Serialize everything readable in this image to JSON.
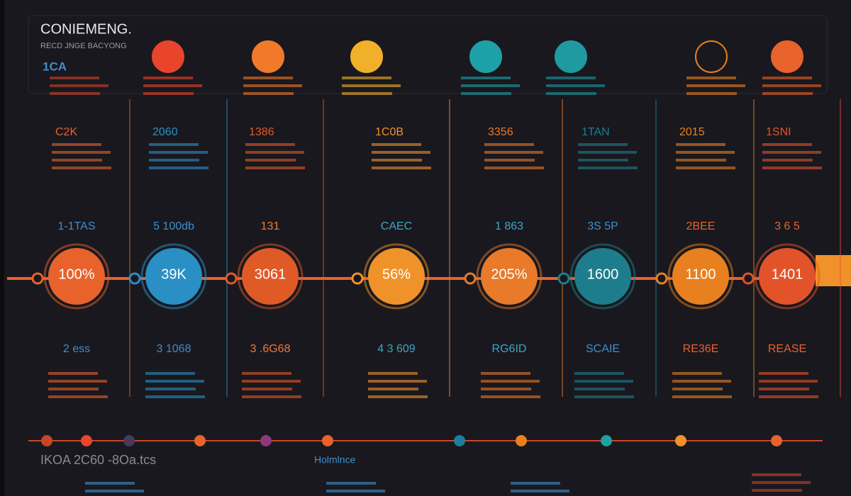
{
  "header": {
    "title": "CONIEMENG.",
    "subtitle": "RECD JNGE BACYONG",
    "tag": "1CA"
  },
  "milestones": [
    {
      "heading": "C2K",
      "label": "1-1TAS",
      "value": "100%",
      "note": "2 ess",
      "color": "#e8622c",
      "text_color": "#3d8fd0"
    },
    {
      "heading": "2060",
      "label": "5 100db",
      "value": "39K",
      "note": "3 1068",
      "color": "#2a8fc4",
      "text_color": "#3d8fd0"
    },
    {
      "heading": "1386",
      "label": "131",
      "value": "3061",
      "note": "3 .6G68",
      "color": "#e05a26",
      "text_color": "#f07a36"
    },
    {
      "heading": "1C0B",
      "label": "CAEC",
      "value": "56%",
      "note": "4 3 609",
      "color": "#f0922a",
      "text_color": "#3aa8c8"
    },
    {
      "heading": "3356",
      "label": "1 863",
      "value": "205%",
      "note": "RG6ID",
      "color": "#e87a2a",
      "text_color": "#3aa8c8"
    },
    {
      "heading": "1TAN",
      "label": "3S 5P",
      "value": "1600",
      "note": "SCAIE",
      "color": "#1e7d8c",
      "text_color": "#3d8fd0"
    },
    {
      "heading": "2015",
      "label": "2BEE",
      "value": "1100",
      "note": "RE36E",
      "color": "#e8801f",
      "text_color": "#e8622c"
    },
    {
      "heading": "1SNI",
      "label": "3 6 5",
      "value": "1401",
      "note": "REASE",
      "color": "#e2532a",
      "text_color": "#e8622c"
    }
  ],
  "footer": {
    "label": "IKOA 2C60 -8Oa.tcs",
    "title": "Holmlnce"
  }
}
